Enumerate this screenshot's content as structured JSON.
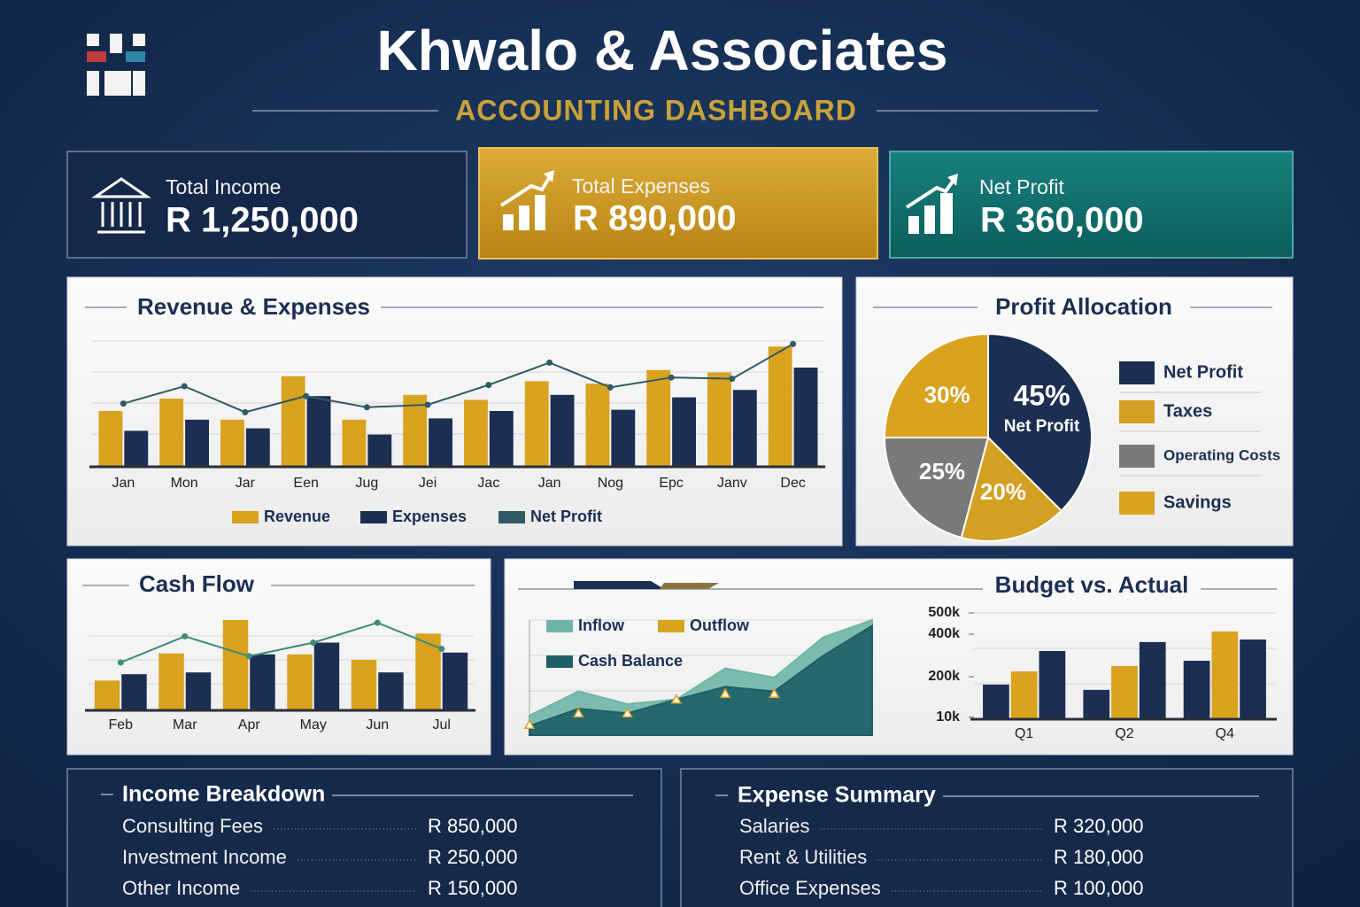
{
  "header": {
    "title": "Khwalo & Associates",
    "subtitle": "ACCOUNTING DASHBOARD"
  },
  "kpis": [
    {
      "label": "Total Income",
      "value": "R 1,250,000"
    },
    {
      "label": "Total Expenses",
      "value": "R 890,000"
    },
    {
      "label": "Net Profit",
      "value": "R 360,000"
    }
  ],
  "chart_data": [
    {
      "type": "bar",
      "title": "Revenue & Expenses",
      "categories": [
        "Jan",
        "Mon",
        "Jar",
        "Een",
        "Jug",
        "Jei",
        "Jac",
        "Jan",
        "Nog",
        "Epc",
        "Janv",
        "Dec"
      ],
      "ylim": [
        0,
        100
      ],
      "series": [
        {
          "name": "Revenue",
          "color": "#d9a21f",
          "type": "bar",
          "values": [
            45,
            55,
            38,
            73,
            38,
            58,
            54,
            69,
            67,
            78,
            76,
            97
          ]
        },
        {
          "name": "Expenses",
          "color": "#1c2f52",
          "type": "bar",
          "values": [
            29,
            38,
            31,
            57,
            26,
            39,
            45,
            58,
            46,
            56,
            62,
            80
          ]
        },
        {
          "name": "Net Profit",
          "color": "#2f5a66",
          "type": "line",
          "values": [
            51,
            65,
            44,
            57,
            48,
            50,
            66,
            84,
            64,
            72,
            71,
            99
          ]
        }
      ]
    },
    {
      "type": "pie",
      "title": "Profit Allocation",
      "categories": [
        "Net Profit",
        "Taxes",
        "Operating Costs",
        "Savings"
      ],
      "values": [
        45,
        20,
        25,
        30
      ],
      "value_labels": [
        "45%",
        "20%",
        "25%",
        "30%"
      ],
      "colors": [
        "#1c2f52",
        "#d4a021",
        "#7a7a7a",
        "#d9a21f"
      ]
    },
    {
      "type": "bar",
      "title": "Cash Flow",
      "categories": [
        "Feb",
        "Mar",
        "Apr",
        "May",
        "Jun",
        "Jul"
      ],
      "ylim": [
        0,
        100
      ],
      "series": [
        {
          "color": "#d9a21f",
          "type": "bar",
          "values": [
            33,
            63,
            100,
            62,
            56,
            85
          ]
        },
        {
          "color": "#1c2f52",
          "type": "bar",
          "values": [
            40,
            42,
            62,
            75,
            42,
            64
          ]
        },
        {
          "color": "#3b8c7c",
          "type": "line",
          "values": [
            53,
            82,
            60,
            75,
            97,
            68
          ]
        }
      ]
    },
    {
      "type": "area",
      "ylim": [
        0,
        100
      ],
      "series": [
        {
          "name": "Inflow",
          "color": "#6fb5a5",
          "type": "area",
          "values": [
            17,
            38,
            27,
            31,
            58,
            50,
            85,
            100
          ]
        },
        {
          "name": "Outflow",
          "color": "#d9a21f",
          "type": "marker",
          "values": [
            9,
            19,
            19,
            31,
            36,
            36,
            null,
            null
          ]
        },
        {
          "name": "Cash Balance",
          "color": "#1d5f66",
          "type": "area",
          "values": [
            8,
            23,
            19,
            31,
            42,
            38,
            69,
            95
          ]
        }
      ]
    },
    {
      "type": "bar",
      "title": "Budget vs. Actual",
      "categories": [
        "Q1",
        "Q2",
        "Q4"
      ],
      "ylim": [
        0,
        500
      ],
      "yticks": [
        {
          "value": 500,
          "label": "500k"
        },
        {
          "value": 400,
          "label": "400k"
        },
        {
          "value": 200,
          "label": "200k"
        },
        {
          "value": 10,
          "label": "10k"
        }
      ],
      "series": [
        {
          "color": "#1c2f52",
          "type": "bar",
          "values": [
            163,
            138,
            275
          ]
        },
        {
          "color": "#d9a21f",
          "type": "bar",
          "values": [
            225,
            250,
            413
          ]
        },
        {
          "color": "#1c2f52",
          "type": "bar",
          "values": [
            321,
            363,
            375
          ]
        }
      ]
    }
  ],
  "income_breakdown": {
    "title": "Income Breakdown",
    "rows": [
      [
        "Consulting Fees",
        "R 850,000"
      ],
      [
        "Investment Income",
        "R 250,000"
      ],
      [
        "Other Income",
        "R 150,000"
      ]
    ]
  },
  "expense_summary": {
    "title": "Expense Summary",
    "rows": [
      [
        "Salaries",
        "R 320,000"
      ],
      [
        "Rent & Utilities",
        "R 180,000"
      ],
      [
        "Office Expenses",
        "R 100,000"
      ]
    ]
  }
}
